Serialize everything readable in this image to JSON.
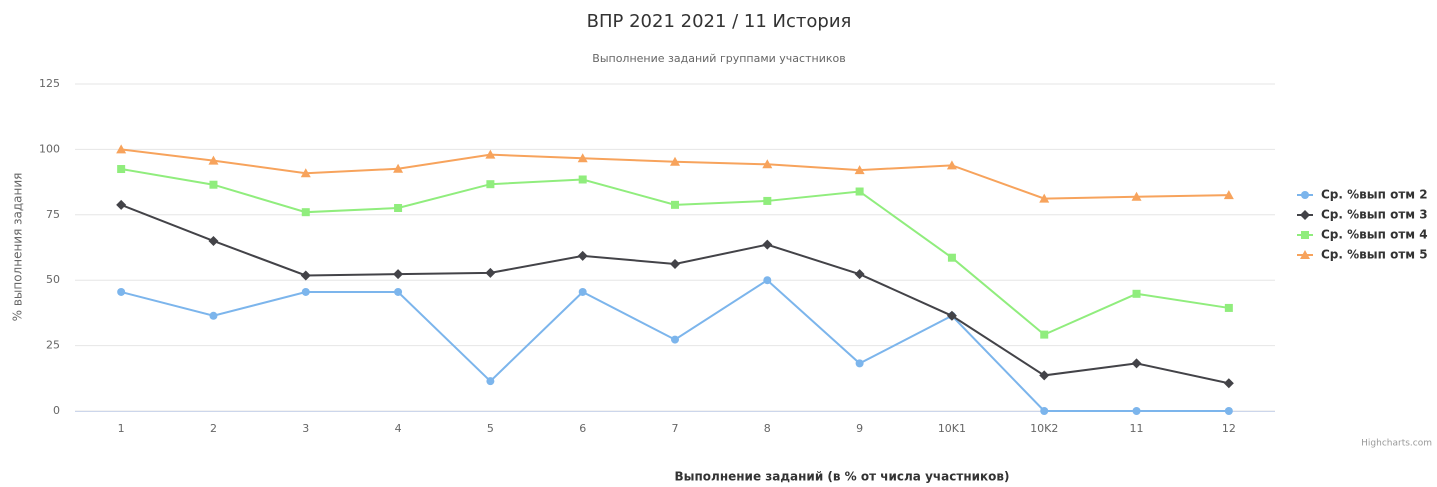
{
  "chart_data": {
    "type": "line",
    "title": "ВПР 2021 2021 / 11 История",
    "subtitle": "Выполнение заданий группами участников",
    "y_axis_label": "% выполнения задания",
    "x_axis_label": "Выполнение заданий (в % от числа участников)",
    "credit": "Highcharts.com",
    "categories": [
      "1",
      "2",
      "3",
      "4",
      "5",
      "6",
      "7",
      "8",
      "9",
      "10K1",
      "10K2",
      "11",
      "12"
    ],
    "ylim": [
      0,
      125
    ],
    "yticks": [
      0,
      25,
      50,
      75,
      100,
      125
    ],
    "grid": true,
    "legend": "right",
    "series": [
      {
        "name": "Ср. %вып отм 2",
        "color": "#7cb5ec",
        "marker": "circle",
        "values": [
          45.5,
          36.4,
          45.5,
          45.5,
          11.4,
          45.5,
          27.3,
          50,
          18.2,
          36.4,
          0,
          0,
          0
        ]
      },
      {
        "name": "Ср. %вып отм 3",
        "color": "#434348",
        "marker": "diamond",
        "values": [
          78.8,
          65,
          51.8,
          52.3,
          52.8,
          59.3,
          56.2,
          63.6,
          52.3,
          36.4,
          13.6,
          18.2,
          10.6
        ]
      },
      {
        "name": "Ср. %вып отм 4",
        "color": "#90ed7d",
        "marker": "square",
        "values": [
          92.5,
          86.5,
          76,
          77.6,
          86.7,
          88.5,
          78.8,
          80.3,
          83.9,
          58.6,
          29.2,
          44.8,
          39.4
        ]
      },
      {
        "name": "Ср. %вып отм 5",
        "color": "#f7a35c",
        "marker": "triangle",
        "values": [
          100,
          95.7,
          90.9,
          92.6,
          98,
          96.6,
          95.3,
          94.3,
          92.1,
          93.9,
          81.2,
          81.9,
          82.5
        ]
      }
    ]
  }
}
